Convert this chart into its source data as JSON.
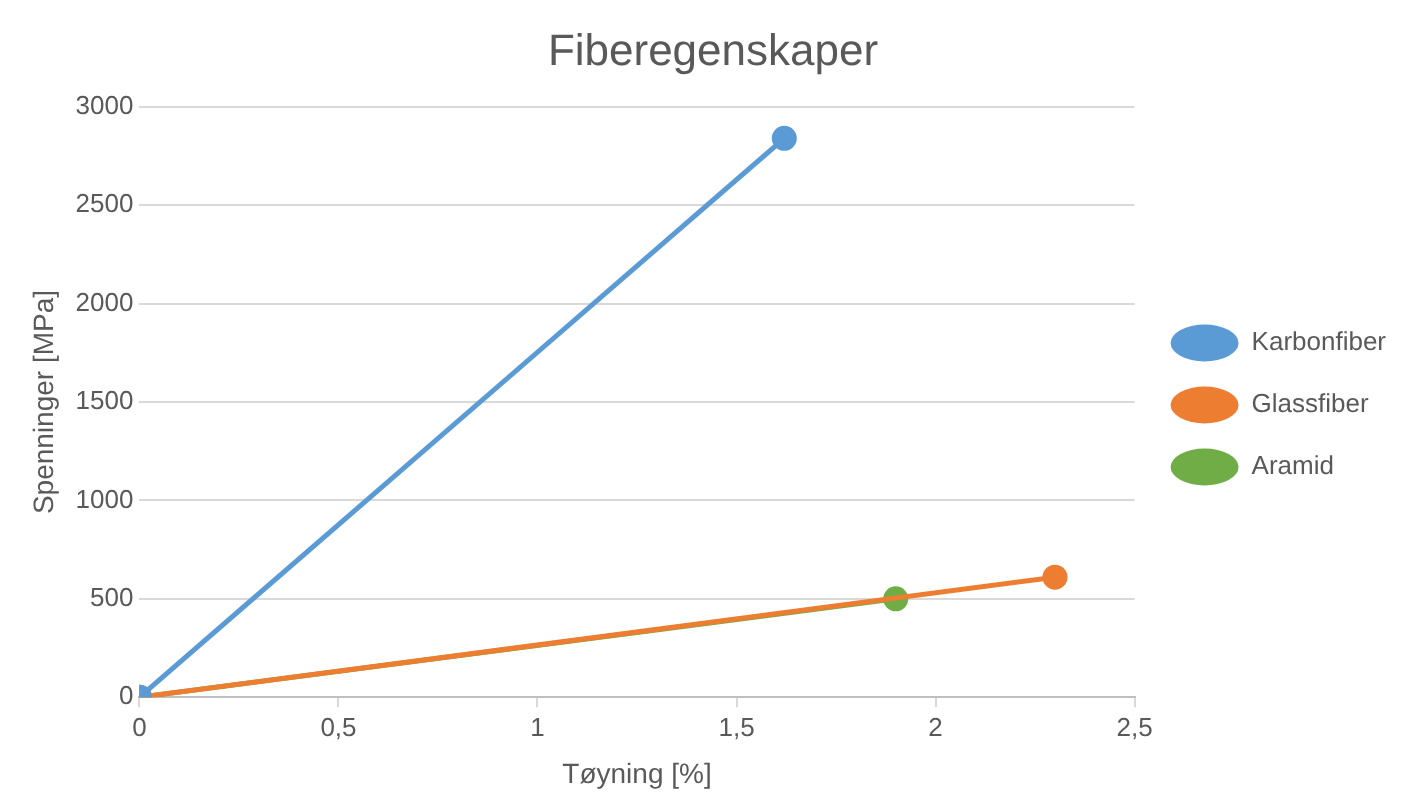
{
  "chart_data": {
    "type": "line",
    "title": "Fiberegenskaper",
    "xlabel": "Tøyning [%]",
    "ylabel": "Spenninger [MPa]",
    "series": [
      {
        "name": "Karbonfiber",
        "color": "#5b9bd5",
        "x": [
          0,
          1.62
        ],
        "values": [
          0,
          2840
        ]
      },
      {
        "name": "Glassfiber",
        "color": "#ed7d31",
        "x": [
          0,
          2.3
        ],
        "values": [
          0,
          610
        ]
      },
      {
        "name": "Aramid",
        "color": "#70ad47",
        "x": [
          0,
          1.9
        ],
        "values": [
          0,
          500
        ]
      }
    ],
    "xlim": [
      0,
      2.5
    ],
    "xticks": [
      0,
      {
        "value": 0.5,
        "label": "0,5"
      },
      1,
      {
        "value": 1.5,
        "label": "1,5"
      },
      2,
      {
        "value": 2.5,
        "label": "2,5"
      }
    ],
    "ylim": [
      0,
      3000
    ],
    "yticks": [
      0,
      500,
      1000,
      1500,
      2000,
      2500,
      3000
    ],
    "grid": "y",
    "legend": "right",
    "marker": "circle",
    "line_style": "solid"
  }
}
